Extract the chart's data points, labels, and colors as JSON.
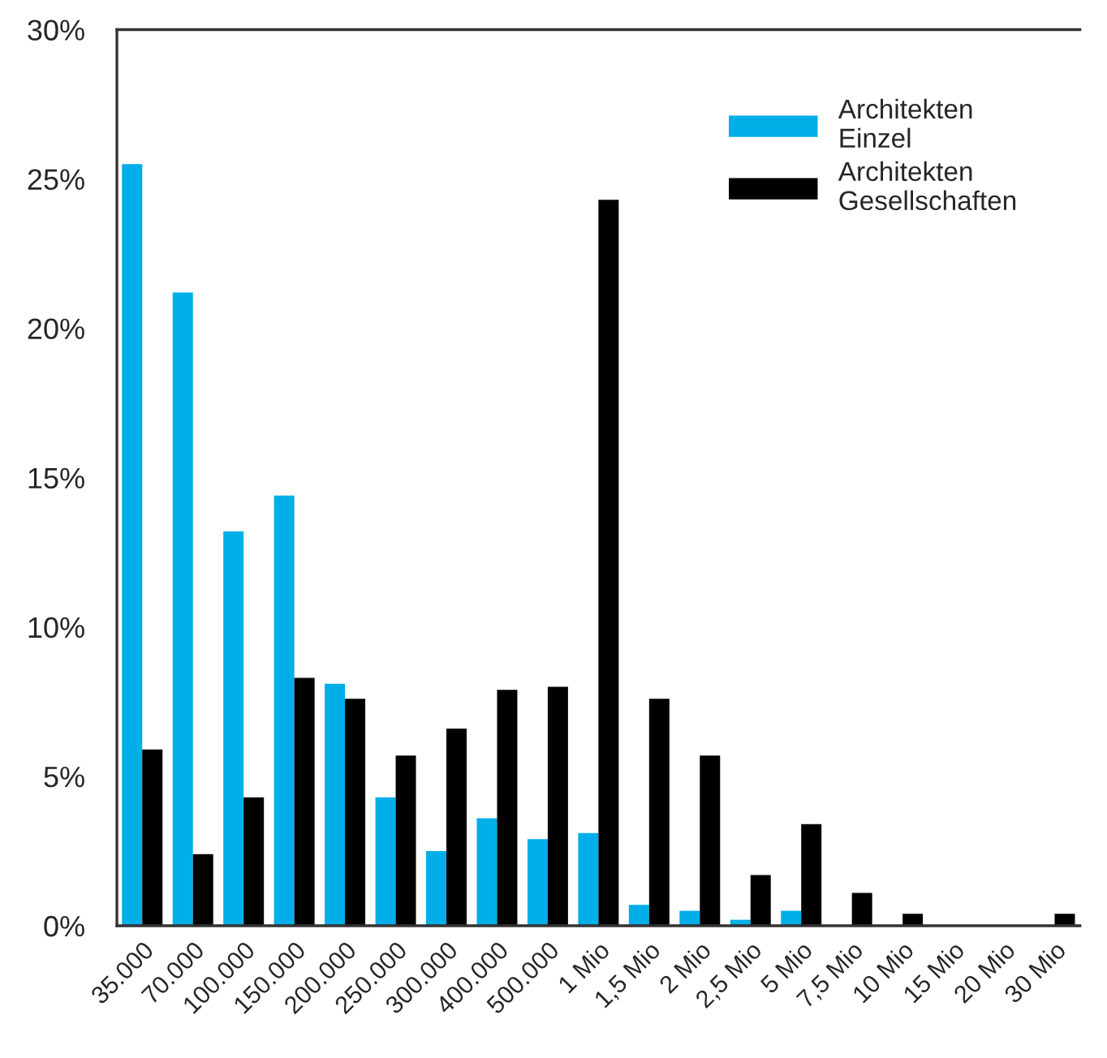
{
  "chart_data": {
    "type": "bar",
    "categories": [
      "35.000",
      "70.000",
      "100.000",
      "150.000",
      "200.000",
      "250.000",
      "300.000",
      "400.000",
      "500.000",
      "1 Mio",
      "1,5 Mio",
      "2 Mio",
      "2,5 Mio",
      "5 Mio",
      "7,5 Mio",
      "10 Mio",
      "15 Mio",
      "20 Mio",
      "30 Mio"
    ],
    "series": [
      {
        "name": "Architekten\nEinzel",
        "color": "#00aee8",
        "values": [
          25.5,
          21.2,
          13.2,
          14.4,
          8.1,
          4.3,
          2.5,
          3.6,
          2.9,
          3.1,
          0.7,
          0.5,
          0.2,
          0.5,
          0,
          0,
          0,
          0,
          0
        ]
      },
      {
        "name": "Architekten\nGesellschaften",
        "color": "#000000",
        "values": [
          5.9,
          2.4,
          4.3,
          8.3,
          7.6,
          5.7,
          6.6,
          7.9,
          8.0,
          24.3,
          7.6,
          5.7,
          1.7,
          3.4,
          1.1,
          0.4,
          0,
          0,
          0.4
        ]
      }
    ],
    "ylim": [
      0,
      30
    ],
    "yticks": [
      {
        "value": 0,
        "label": "0%"
      },
      {
        "value": 5,
        "label": "5%"
      },
      {
        "value": 10,
        "label": "10%"
      },
      {
        "value": 15,
        "label": "15%"
      },
      {
        "value": 20,
        "label": "20%"
      },
      {
        "value": 25,
        "label": "25%"
      },
      {
        "value": 30,
        "label": "30%"
      }
    ],
    "grid": false,
    "legend": "top right"
  }
}
